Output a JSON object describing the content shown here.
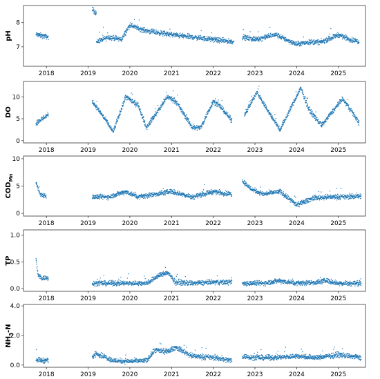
{
  "chart_data": {
    "type": "scatter",
    "layout": "stacked-panels",
    "color": "#1f77b4",
    "x_tick_labels": [
      "2018",
      "2019",
      "2020",
      "2021",
      "2022",
      "2023",
      "2024",
      "2025"
    ],
    "x_ticks": [
      2018,
      2019,
      2020,
      2021,
      2022,
      2023,
      2024,
      2025
    ],
    "xlim": [
      2017.45,
      2025.65
    ],
    "grid": false,
    "panels": [
      {
        "ylabel": "pH",
        "ylim": [
          6.2,
          8.7
        ],
        "yticks": [
          7,
          8
        ],
        "ytick_labels": [
          "7",
          "8"
        ],
        "segments": [
          {
            "x": [
              2017.75,
              2017.9,
              2018.05
            ],
            "y": [
              7.5,
              7.45,
              7.4
            ]
          },
          {
            "x": [
              2019.1,
              2019.15,
              2019.2
            ],
            "y": [
              8.55,
              8.45,
              8.4
            ]
          },
          {
            "x": [
              2019.2,
              2019.5,
              2019.8,
              2020.0,
              2020.3,
              2020.6,
              2021.0,
              2021.5,
              2022.0,
              2022.5
            ],
            "y": [
              7.2,
              7.4,
              7.3,
              7.9,
              7.7,
              7.6,
              7.5,
              7.4,
              7.3,
              7.2
            ]
          },
          {
            "x": [
              2022.7,
              2023.0,
              2023.5,
              2024.0,
              2024.3,
              2024.6,
              2025.0,
              2025.3,
              2025.5
            ],
            "y": [
              7.4,
              7.3,
              7.5,
              7.1,
              7.2,
              7.2,
              7.5,
              7.3,
              7.2
            ]
          }
        ]
      },
      {
        "ylabel": "DO",
        "ylim": [
          -0.5,
          13.5
        ],
        "yticks": [
          0,
          5,
          10
        ],
        "ytick_labels": [
          "0",
          "5",
          "10"
        ],
        "segments": [
          {
            "x": [
              2017.75,
              2017.9,
              2018.05
            ],
            "y": [
              4.0,
              5.0,
              6.0
            ]
          },
          {
            "x": [
              2019.1,
              2019.4,
              2019.6,
              2019.9,
              2020.2,
              2020.4,
              2020.9,
              2021.1,
              2021.5,
              2021.7,
              2022.0,
              2022.2,
              2022.45
            ],
            "y": [
              9.0,
              5.0,
              2.0,
              10.0,
              8.0,
              3.0,
              10.0,
              9.0,
              3.0,
              3.0,
              9.0,
              7.5,
              4.5
            ]
          },
          {
            "x": [
              2022.75,
              2023.05,
              2023.3,
              2023.6,
              2024.1,
              2024.3,
              2024.6,
              2025.1,
              2025.3,
              2025.5
            ],
            "y": [
              6.0,
              11.0,
              7.0,
              2.5,
              12.0,
              7.0,
              3.5,
              9.5,
              7.0,
              4.0
            ]
          }
        ]
      },
      {
        "ylabel": "COD",
        "ylabel_sub": "Mn",
        "ylim": [
          -0.5,
          10.5
        ],
        "yticks": [
          0,
          5,
          10
        ],
        "ytick_labels": [
          "0",
          "5",
          "10"
        ],
        "segments": [
          {
            "x": [
              2017.75,
              2017.85,
              2018.0
            ],
            "y": [
              5.5,
              3.5,
              3.2
            ]
          },
          {
            "x": [
              2019.1,
              2019.5,
              2019.9,
              2020.2,
              2020.6,
              2021.0,
              2021.5,
              2022.0,
              2022.45
            ],
            "y": [
              3.0,
              3.0,
              4.0,
              3.0,
              3.5,
              4.0,
              3.0,
              4.0,
              3.5
            ]
          },
          {
            "x": [
              2022.7,
              2022.9,
              2023.2,
              2023.6,
              2024.0,
              2024.4,
              2024.8,
              2025.2,
              2025.55
            ],
            "y": [
              6.0,
              4.5,
              3.5,
              4.0,
              1.5,
              2.8,
              3.0,
              3.0,
              3.2
            ]
          }
        ]
      },
      {
        "ylabel": "TP",
        "ylim": [
          -0.05,
          1.1
        ],
        "yticks": [
          0.0,
          0.5,
          1.0
        ],
        "ytick_labels": [
          "0.0",
          "0.5",
          "1.0"
        ],
        "segments": [
          {
            "x": [
              2017.75,
              2017.8,
              2017.9,
              2018.05
            ],
            "y": [
              0.55,
              0.25,
              0.2,
              0.2
            ]
          },
          {
            "x": [
              2019.1,
              2019.5,
              2020.0,
              2020.4,
              2020.7,
              2020.9,
              2021.1,
              2021.5,
              2022.0,
              2022.45
            ],
            "y": [
              0.1,
              0.1,
              0.1,
              0.1,
              0.25,
              0.3,
              0.12,
              0.1,
              0.12,
              0.12
            ]
          },
          {
            "x": [
              2022.7,
              2023.2,
              2023.6,
              2024.0,
              2024.5,
              2024.7,
              2025.0,
              2025.55
            ],
            "y": [
              0.1,
              0.1,
              0.15,
              0.1,
              0.12,
              0.15,
              0.1,
              0.1
            ]
          }
        ]
      },
      {
        "ylabel": "NH3-N",
        "ylabel_main": "NH",
        "ylabel_sub": "3",
        "ylabel_tail": "-N",
        "ylim": [
          -0.15,
          4.1
        ],
        "yticks": [
          0.0,
          2.0,
          4.0
        ],
        "ytick_labels": [
          "0.0",
          "2.0",
          "4.0"
        ],
        "segments": [
          {
            "x": [
              2017.75,
              2017.9,
              2018.05
            ],
            "y": [
              0.4,
              0.3,
              0.35
            ]
          },
          {
            "x": [
              2019.1,
              2019.2,
              2019.6,
              2020.0,
              2020.4,
              2020.6,
              2020.9,
              2021.1,
              2021.5,
              2022.0,
              2022.45
            ],
            "y": [
              0.5,
              0.8,
              0.3,
              0.25,
              0.3,
              1.0,
              0.9,
              1.2,
              0.6,
              0.5,
              0.3
            ]
          },
          {
            "x": [
              2022.7,
              2023.0,
              2023.5,
              2024.0,
              2024.5,
              2025.0,
              2025.55
            ],
            "y": [
              0.6,
              0.5,
              0.5,
              0.6,
              0.5,
              0.7,
              0.5
            ]
          }
        ]
      }
    ]
  }
}
